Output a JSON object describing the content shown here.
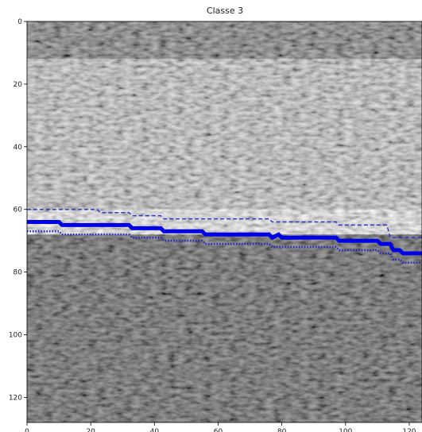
{
  "chart_data": {
    "type": "heatmap",
    "title": "Classe 3",
    "xlabel": "",
    "ylabel": "",
    "xlim": [
      0,
      124
    ],
    "ylim": [
      128,
      0
    ],
    "y_inverted": true,
    "grid": false,
    "x_ticks": [
      0,
      20,
      40,
      60,
      80,
      100,
      120
    ],
    "y_ticks": [
      0,
      20,
      40,
      60,
      80,
      100,
      120
    ],
    "image": {
      "colormap": "gray",
      "description_of_bands": [
        {
          "from_row": 0,
          "to_row": 12,
          "brightness": 0.35
        },
        {
          "from_row": 12,
          "to_row": 60,
          "brightness": 0.72
        },
        {
          "from_row": 60,
          "to_row": 68,
          "brightness": 0.95
        },
        {
          "from_row": 68,
          "to_row": 128,
          "brightness": 0.2
        }
      ]
    },
    "series": [
      {
        "style": "dashed",
        "color": "#3333cc",
        "x": [
          0,
          22,
          23,
          32,
          33,
          42,
          43,
          76,
          77,
          97,
          98,
          113,
          114,
          124
        ],
        "y": [
          60,
          60,
          61,
          61,
          62,
          62,
          63,
          63,
          64,
          64,
          65,
          65,
          69,
          69
        ]
      },
      {
        "style": "solid-thick",
        "color": "#0000e6",
        "x": [
          0,
          10,
          11,
          32,
          33,
          42,
          43,
          55,
          56,
          76,
          77,
          79,
          80,
          97,
          98,
          110,
          111,
          114,
          115,
          117,
          118,
          124
        ],
        "y": [
          64,
          64,
          65,
          65,
          66,
          66,
          67,
          67,
          68,
          68,
          69,
          68,
          69,
          69,
          70,
          70,
          71,
          71,
          73,
          73,
          74,
          74
        ]
      },
      {
        "style": "dotted",
        "color": "#2020c8",
        "x": [
          0,
          10,
          11,
          32,
          33,
          42,
          43,
          55,
          56,
          76,
          77,
          97,
          98,
          110,
          111,
          114,
          115,
          117,
          118,
          124
        ],
        "y": [
          67,
          67,
          68,
          68,
          69,
          69,
          70,
          70,
          71,
          71,
          72,
          72,
          73,
          73,
          74,
          74,
          76,
          76,
          77,
          77
        ]
      }
    ],
    "colors": {
      "dashed_line": "#3333cc",
      "solid_line": "#0000e6",
      "dotted_line": "#2020c8"
    }
  }
}
